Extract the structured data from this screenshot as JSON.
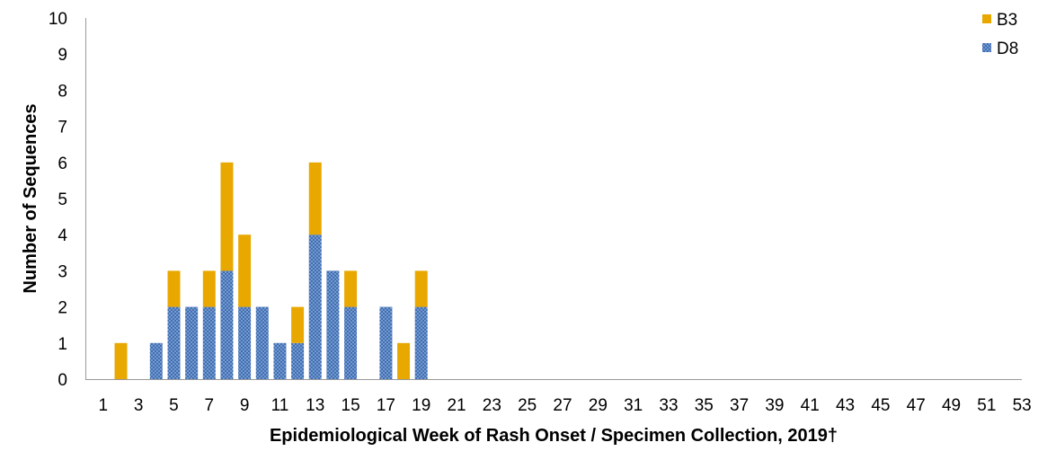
{
  "chart_data": {
    "type": "bar",
    "stacked": true,
    "xlabel": "Epidemiological Week of Rash Onset / Specimen Collection, 2019†",
    "ylabel": "Number of Sequences",
    "ylim": [
      0,
      10
    ],
    "yticks": [
      "0",
      "1",
      "2",
      "3",
      "4",
      "5",
      "6",
      "7",
      "8",
      "9",
      "10"
    ],
    "x": [
      1,
      2,
      3,
      4,
      5,
      6,
      7,
      8,
      9,
      10,
      11,
      12,
      13,
      14,
      15,
      16,
      17,
      18,
      19,
      20,
      21,
      22,
      23,
      24,
      25,
      26,
      27,
      28,
      29,
      30,
      31,
      32,
      33,
      34,
      35,
      36,
      37,
      38,
      39,
      40,
      41,
      42,
      43,
      44,
      45,
      46,
      47,
      48,
      49,
      50,
      51,
      52,
      53
    ],
    "xtick_labels": [
      "1",
      "3",
      "5",
      "7",
      "9",
      "11",
      "13",
      "15",
      "17",
      "19",
      "21",
      "23",
      "25",
      "27",
      "29",
      "31",
      "33",
      "35",
      "37",
      "39",
      "41",
      "43",
      "45",
      "47",
      "49",
      "51",
      "53"
    ],
    "legend_position": "top-right",
    "grid": false,
    "series": [
      {
        "name": "D8",
        "color": "#3f6fb5",
        "pattern": "dotted",
        "values": [
          0,
          0,
          0,
          1,
          2,
          2,
          2,
          3,
          2,
          2,
          1,
          1,
          4,
          3,
          2,
          0,
          2,
          0,
          2,
          0,
          0,
          0,
          0,
          0,
          0,
          0,
          0,
          0,
          0,
          0,
          0,
          0,
          0,
          0,
          0,
          0,
          0,
          0,
          0,
          0,
          0,
          0,
          0,
          0,
          0,
          0,
          0,
          0,
          0,
          0,
          0,
          0,
          0
        ]
      },
      {
        "name": "B3",
        "color": "#e8a800",
        "pattern": "solid",
        "values": [
          0,
          1,
          0,
          0,
          1,
          0,
          1,
          3,
          2,
          0,
          0,
          1,
          2,
          0,
          1,
          0,
          0,
          1,
          1,
          0,
          0,
          0,
          0,
          0,
          0,
          0,
          0,
          0,
          0,
          0,
          0,
          0,
          0,
          0,
          0,
          0,
          0,
          0,
          0,
          0,
          0,
          0,
          0,
          0,
          0,
          0,
          0,
          0,
          0,
          0,
          0,
          0,
          0
        ]
      }
    ],
    "legend_order": [
      "B3",
      "D8"
    ]
  }
}
